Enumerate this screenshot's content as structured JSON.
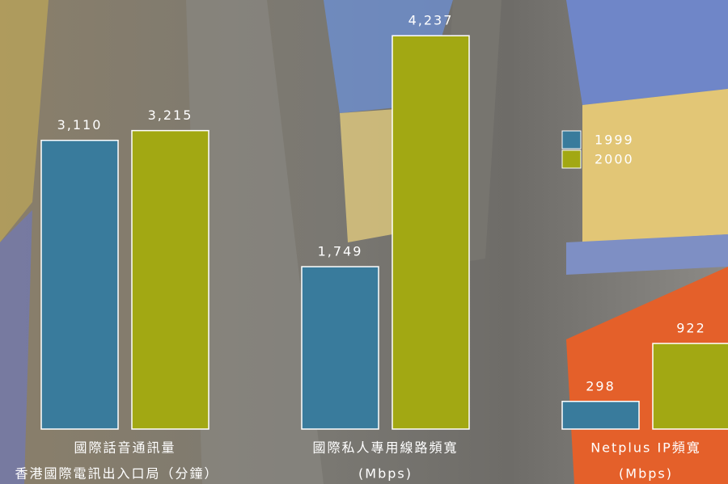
{
  "chart_data": {
    "type": "bar",
    "categories": [
      [
        "國際話音通訊量",
        "香港國際電訊出入口局（分鐘）"
      ],
      [
        "國際私人專用線路頻寬",
        "(Mbps)"
      ],
      [
        "Netplus IP頻寬",
        "(Mbps)"
      ]
    ],
    "series": [
      {
        "name": "1999",
        "color": "#397b9c",
        "values": [
          3110,
          1749,
          298
        ],
        "value_labels": [
          "3,110",
          "1,749",
          "298"
        ]
      },
      {
        "name": "2000",
        "color": "#a2a813",
        "values": [
          3215,
          4237,
          922
        ],
        "value_labels": [
          "3,215",
          "4,237",
          "922"
        ]
      }
    ],
    "ylim": [
      0,
      4500
    ]
  }
}
